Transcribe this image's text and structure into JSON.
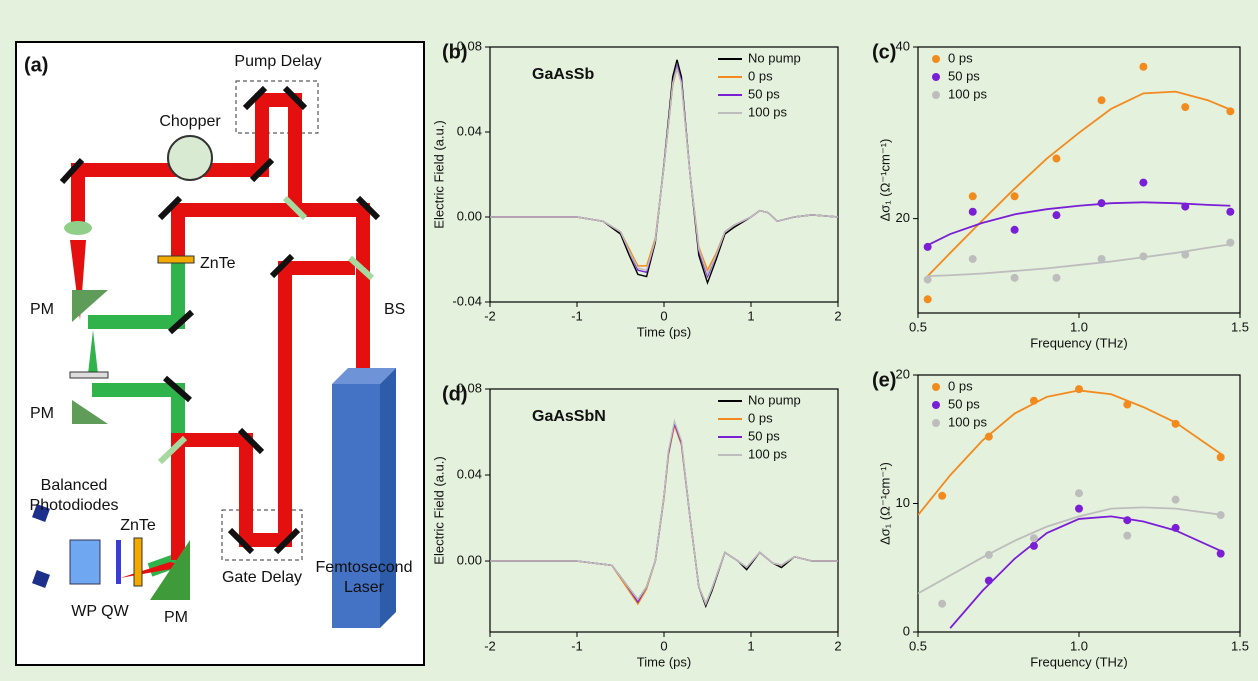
{
  "diagram": {
    "panel": "(a)",
    "labels": [
      "Pump Delay",
      "Chopper",
      "ZnTe",
      "PM",
      "PM",
      "BS",
      "Balanced",
      "Photodiodes",
      "ZnTe",
      "WP QW",
      "PM",
      "Gate Delay",
      "Femtosecond",
      "Laser"
    ]
  },
  "chart_data": [
    {
      "type": "line",
      "panel": "(b)",
      "annotation": "GaAsSb",
      "x_label": "Time (ps)",
      "y_label": "Electric Field (a.u.)",
      "xlim": [
        -2,
        2
      ],
      "xticks": [
        -2,
        -1,
        0,
        1,
        2
      ],
      "ylim": [
        -0.04,
        0.08
      ],
      "yticks": [
        -0.04,
        {
          "value": 0,
          "label": "0.00"
        },
        0.04,
        0.08
      ],
      "legend": "upper right",
      "x": [
        -2,
        -1.5,
        -1,
        -0.7,
        -0.5,
        -0.4,
        -0.3,
        -0.2,
        -0.1,
        0,
        0.1,
        0.15,
        0.2,
        0.3,
        0.4,
        0.5,
        0.6,
        0.7,
        0.8,
        1,
        1.1,
        1.2,
        1.3,
        1.5,
        1.7,
        2
      ],
      "series": [
        {
          "name": "No pump",
          "color": "#000000",
          "values": [
            0,
            0,
            0,
            -0.002,
            -0.008,
            -0.018,
            -0.027,
            -0.028,
            -0.012,
            0.025,
            0.066,
            0.074,
            0.066,
            0.02,
            -0.018,
            -0.031,
            -0.02,
            -0.008,
            -0.005,
            0,
            0.003,
            0.002,
            -0.002,
            0,
            0.001,
            0
          ]
        },
        {
          "name": "0 ps",
          "color": "#f28a1e",
          "values": [
            0,
            0,
            0,
            -0.002,
            -0.007,
            -0.015,
            -0.023,
            -0.023,
            -0.01,
            0.024,
            0.062,
            0.07,
            0.063,
            0.02,
            -0.014,
            -0.025,
            -0.017,
            -0.007,
            -0.004,
            0,
            0.003,
            0.002,
            -0.002,
            0,
            0.001,
            0
          ]
        },
        {
          "name": "50 ps",
          "color": "#7a1fd6",
          "values": [
            0,
            0,
            0,
            -0.002,
            -0.007,
            -0.016,
            -0.025,
            -0.026,
            -0.011,
            0.024,
            0.063,
            0.071,
            0.064,
            0.02,
            -0.016,
            -0.028,
            -0.018,
            -0.007,
            -0.004,
            0,
            0.003,
            0.002,
            -0.002,
            0,
            0.001,
            0
          ]
        },
        {
          "name": "100 ps",
          "color": "#bdbdbd",
          "values": [
            0,
            0,
            0,
            -0.002,
            -0.007,
            -0.016,
            -0.024,
            -0.025,
            -0.011,
            0.024,
            0.063,
            0.07,
            0.063,
            0.02,
            -0.015,
            -0.027,
            -0.018,
            -0.007,
            -0.004,
            0,
            0.003,
            0.002,
            -0.002,
            0,
            0.001,
            0
          ]
        }
      ]
    },
    {
      "type": "scatter",
      "panel": "(c)",
      "x_label": "Frequency (THz)",
      "y_label": "Δσ₁ (Ω⁻¹cm⁻¹)",
      "xlim": [
        0.5,
        1.5
      ],
      "xticks": [
        0.5,
        {
          "value": 1,
          "label": "1.0"
        },
        1.5
      ],
      "ylim": [
        9,
        40
      ],
      "yticks": [
        20,
        40
      ],
      "legend": "upper left",
      "x": [
        0.53,
        0.67,
        0.8,
        0.93,
        1.07,
        1.2,
        1.33,
        1.47
      ],
      "fit_x": [
        0.53,
        0.6,
        0.7,
        0.8,
        0.9,
        1.0,
        1.1,
        1.2,
        1.3,
        1.4,
        1.47
      ],
      "series": [
        {
          "name": "0 ps",
          "color": "#f28a1e",
          "values": [
            10.6,
            22.6,
            22.6,
            27,
            33.8,
            37.7,
            33,
            32.5
          ],
          "fit": [
            13.3,
            16,
            19.8,
            23.5,
            27,
            30,
            32.8,
            34.6,
            34.8,
            33.8,
            32.7
          ]
        },
        {
          "name": "50 ps",
          "color": "#7a1fd6",
          "values": [
            16.7,
            20.8,
            18.7,
            20.4,
            21.8,
            24.2,
            21.4,
            20.8
          ],
          "fit": [
            16.9,
            18.2,
            19.5,
            20.5,
            21.1,
            21.5,
            21.8,
            21.9,
            21.8,
            21.6,
            21.5
          ]
        },
        {
          "name": "100 ps",
          "color": "#bdbdbd",
          "values": [
            12.9,
            15.3,
            13.1,
            13.1,
            15.3,
            15.6,
            15.8,
            17.2
          ],
          "fit": [
            13.3,
            13.4,
            13.6,
            13.9,
            14.2,
            14.6,
            15,
            15.5,
            16,
            16.6,
            17
          ]
        }
      ]
    },
    {
      "type": "line",
      "panel": "(d)",
      "annotation": "GaAsSbN",
      "x_label": "Time (ps)",
      "y_label": "Electric Field (a.u.)",
      "xlim": [
        -2,
        2
      ],
      "xticks": [
        -2,
        -1,
        0,
        1,
        2
      ],
      "ylim": [
        -0.033,
        0.08
      ],
      "yticks": [
        {
          "value": 0,
          "label": "0.00"
        },
        0.04,
        0.08
      ],
      "legend": "upper right",
      "x": [
        -2,
        -1,
        -0.6,
        -0.45,
        -0.3,
        -0.2,
        -0.1,
        0,
        0.05,
        0.12,
        0.2,
        0.3,
        0.4,
        0.48,
        0.55,
        0.7,
        0.85,
        0.95,
        1.1,
        1.25,
        1.35,
        1.5,
        1.7,
        2
      ],
      "series": [
        {
          "name": "No pump",
          "color": "#000000",
          "values": [
            0,
            0,
            -0.002,
            -0.01,
            -0.018,
            -0.012,
            0,
            0.03,
            0.05,
            0.064,
            0.055,
            0.02,
            -0.012,
            -0.021,
            -0.014,
            0.004,
            0,
            -0.004,
            0.004,
            -0.001,
            -0.003,
            0.002,
            0,
            0
          ]
        },
        {
          "name": "0 ps",
          "color": "#f28a1e",
          "values": [
            0,
            0,
            -0.002,
            -0.011,
            -0.02,
            -0.013,
            0,
            0.029,
            0.049,
            0.063,
            0.054,
            0.02,
            -0.012,
            -0.02,
            -0.013,
            0.004,
            0,
            -0.003,
            0.004,
            -0.001,
            -0.002,
            0.002,
            0,
            0
          ]
        },
        {
          "name": "50 ps",
          "color": "#7a1fd6",
          "values": [
            0,
            0,
            -0.002,
            -0.01,
            -0.019,
            -0.012,
            0,
            0.03,
            0.05,
            0.064,
            0.055,
            0.02,
            -0.012,
            -0.02,
            -0.013,
            0.004,
            0,
            -0.003,
            0.004,
            -0.001,
            -0.002,
            0.002,
            0,
            0
          ]
        },
        {
          "name": "100 ps",
          "color": "#bdbdbd",
          "values": [
            0,
            0,
            -0.002,
            -0.01,
            -0.018,
            -0.012,
            0,
            0.03,
            0.051,
            0.065,
            0.056,
            0.02,
            -0.012,
            -0.02,
            -0.013,
            0.004,
            0,
            -0.003,
            0.004,
            -0.001,
            -0.002,
            0.002,
            0,
            0
          ]
        }
      ]
    },
    {
      "type": "scatter",
      "panel": "(e)",
      "x_label": "Frequency (THz)",
      "y_label": "Δσ₁ (Ω⁻¹cm⁻¹)",
      "xlim": [
        0.5,
        1.5
      ],
      "xticks": [
        0.5,
        {
          "value": 1,
          "label": "1.0"
        },
        1.5
      ],
      "ylim": [
        0,
        20
      ],
      "yticks": [
        0,
        10,
        20
      ],
      "legend": "upper left",
      "x": [
        0.575,
        0.72,
        0.86,
        1.0,
        1.15,
        1.3,
        1.44
      ],
      "fit_x": [
        0.5,
        0.6,
        0.7,
        0.8,
        0.9,
        1.0,
        1.1,
        1.2,
        1.3,
        1.45
      ],
      "series": [
        {
          "name": "0 ps",
          "color": "#f28a1e",
          "values": [
            10.6,
            15.2,
            18,
            18.9,
            17.7,
            16.2,
            13.6
          ],
          "fit": [
            9.1,
            12.2,
            14.9,
            17,
            18.3,
            18.8,
            18.5,
            17.5,
            16.3,
            13.7
          ]
        },
        {
          "name": "50 ps",
          "color": "#7a1fd6",
          "values": [
            null,
            4,
            6.7,
            9.6,
            8.7,
            8.1,
            6.1
          ],
          "fit": [
            null,
            0.3,
            3.2,
            5.7,
            7.7,
            8.8,
            9,
            8.6,
            7.9,
            6.2
          ]
        },
        {
          "name": "100 ps",
          "color": "#bdbdbd",
          "values": [
            2.2,
            6,
            7.3,
            10.8,
            7.5,
            10.3,
            9.1
          ],
          "fit": [
            3,
            4.4,
            5.8,
            7.1,
            8.2,
            9,
            9.6,
            9.7,
            9.6,
            9.1
          ]
        }
      ]
    }
  ]
}
